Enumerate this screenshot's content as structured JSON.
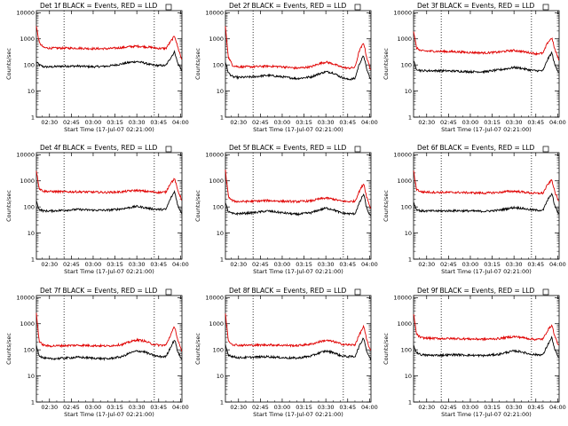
{
  "colors": {
    "events": "#000000",
    "lld": "#e00000",
    "background": "#ffffff",
    "axes": "#000000"
  },
  "chart_data": {
    "type": "line",
    "layout": "3x3 grid of panels",
    "title_prefix_template": "Det {n}f",
    "title_suffix": "BLACK = Events, RED = LLD",
    "xlabel": "Start Time (17-Jul-07 02:21:00)",
    "ylabel": "Counts/sec",
    "x_ticks": [
      "02:30",
      "02:45",
      "03:00",
      "03:15",
      "03:30",
      "03:45",
      "04:00"
    ],
    "x_tick_minutes": [
      30,
      45,
      60,
      75,
      90,
      105,
      120
    ],
    "xlim_minutes": [
      21,
      121
    ],
    "xlim": [
      "02:21",
      "04:01"
    ],
    "y_scale": "log",
    "ylim": [
      1,
      12000
    ],
    "y_ticks": [
      1,
      10,
      100,
      1000,
      10000
    ],
    "y_tick_labels": [
      "1",
      "10",
      "100",
      "1000",
      "10000"
    ],
    "grid": false,
    "legend": "none (described in titles)",
    "panels": [
      {
        "title": "Det 1f BLACK = Events, RED = LLD",
        "vlines_minutes": [
          40,
          102
        ],
        "series": [
          {
            "name": "Events",
            "x": [
              21,
              23,
              26,
              30,
              40,
              50,
              60,
              70,
              80,
              85,
              90,
              95,
              100,
              105,
              110,
              113,
              116,
              118,
              121
            ],
            "y": [
              130,
              100,
              85,
              84,
              90,
              90,
              85,
              90,
              110,
              125,
              135,
              120,
              100,
              95,
              95,
              180,
              320,
              120,
              60
            ]
          },
          {
            "name": "LLD",
            "x": [
              21,
              23,
              26,
              30,
              40,
              50,
              60,
              70,
              80,
              85,
              90,
              95,
              100,
              105,
              110,
              113,
              116,
              118,
              121
            ],
            "y": [
              3000,
              700,
              460,
              440,
              440,
              440,
              420,
              420,
              460,
              500,
              520,
              500,
              470,
              430,
              430,
              750,
              1300,
              520,
              150
            ]
          }
        ]
      },
      {
        "title": "Det 2f BLACK = Events, RED = LLD",
        "vlines_minutes": [
          40,
          102
        ],
        "series": [
          {
            "name": "Events",
            "x": [
              21,
              23,
              26,
              30,
              40,
              50,
              60,
              70,
              80,
              85,
              90,
              95,
              100,
              105,
              110,
              113,
              116,
              118,
              121
            ],
            "y": [
              130,
              50,
              35,
              33,
              35,
              40,
              35,
              30,
              35,
              45,
              55,
              50,
              35,
              28,
              30,
              110,
              230,
              70,
              25
            ]
          },
          {
            "name": "LLD",
            "x": [
              21,
              23,
              26,
              30,
              40,
              50,
              60,
              70,
              80,
              85,
              90,
              95,
              100,
              105,
              110,
              113,
              116,
              118,
              121
            ],
            "y": [
              3000,
              200,
              95,
              85,
              85,
              90,
              85,
              75,
              85,
              110,
              130,
              110,
              85,
              75,
              80,
              350,
              700,
              200,
              60
            ]
          }
        ]
      },
      {
        "title": "Det 3f BLACK = Events, RED = LLD",
        "vlines_minutes": [
          40,
          102
        ],
        "series": [
          {
            "name": "Events",
            "x": [
              21,
              23,
              26,
              30,
              40,
              50,
              60,
              70,
              80,
              85,
              90,
              95,
              100,
              105,
              110,
              113,
              116,
              118,
              121
            ],
            "y": [
              140,
              70,
              60,
              60,
              60,
              58,
              55,
              55,
              65,
              72,
              80,
              75,
              65,
              60,
              60,
              160,
              300,
              100,
              50
            ]
          },
          {
            "name": "LLD",
            "x": [
              21,
              23,
              26,
              30,
              40,
              50,
              60,
              70,
              80,
              85,
              90,
              95,
              100,
              105,
              110,
              113,
              116,
              118,
              121
            ],
            "y": [
              2000,
              450,
              350,
              340,
              330,
              320,
              300,
              290,
              310,
              340,
              360,
              330,
              300,
              270,
              280,
              700,
              1100,
              400,
              150
            ]
          }
        ]
      },
      {
        "title": "Det 4f BLACK = Events, RED = LLD",
        "vlines_minutes": [
          40,
          102
        ],
        "series": [
          {
            "name": "Events",
            "x": [
              21,
              23,
              26,
              30,
              40,
              50,
              60,
              70,
              80,
              85,
              90,
              95,
              100,
              105,
              110,
              113,
              116,
              118,
              121
            ],
            "y": [
              160,
              80,
              70,
              70,
              75,
              80,
              75,
              75,
              85,
              95,
              105,
              95,
              85,
              80,
              80,
              200,
              400,
              120,
              55
            ]
          },
          {
            "name": "LLD",
            "x": [
              21,
              23,
              26,
              30,
              40,
              50,
              60,
              70,
              80,
              85,
              90,
              95,
              100,
              105,
              110,
              113,
              116,
              118,
              121
            ],
            "y": [
              2500,
              500,
              400,
              390,
              380,
              380,
              370,
              360,
              380,
              410,
              430,
              400,
              380,
              360,
              370,
              800,
              1200,
              450,
              180
            ]
          }
        ]
      },
      {
        "title": "Det 5f BLACK = Events, RED = LLD",
        "vlines_minutes": [
          40,
          102
        ],
        "series": [
          {
            "name": "Events",
            "x": [
              21,
              23,
              26,
              30,
              40,
              50,
              60,
              70,
              80,
              85,
              90,
              95,
              100,
              105,
              110,
              113,
              116,
              118,
              121
            ],
            "y": [
              140,
              65,
              55,
              55,
              60,
              70,
              60,
              52,
              60,
              75,
              90,
              80,
              60,
              55,
              55,
              140,
              320,
              90,
              40
            ]
          },
          {
            "name": "LLD",
            "x": [
              21,
              23,
              26,
              30,
              40,
              50,
              60,
              70,
              80,
              85,
              90,
              95,
              100,
              105,
              110,
              113,
              116,
              118,
              121
            ],
            "y": [
              2500,
              250,
              170,
              160,
              165,
              175,
              165,
              160,
              170,
              200,
              220,
              200,
              170,
              160,
              165,
              400,
              800,
              250,
              80
            ]
          }
        ]
      },
      {
        "title": "Det 6f BLACK = Events, RED = LLD",
        "vlines_minutes": [
          40,
          102
        ],
        "series": [
          {
            "name": "Events",
            "x": [
              21,
              23,
              26,
              30,
              40,
              50,
              60,
              70,
              80,
              85,
              90,
              95,
              100,
              105,
              110,
              113,
              116,
              118,
              121
            ],
            "y": [
              150,
              80,
              70,
              70,
              70,
              72,
              70,
              68,
              75,
              85,
              95,
              90,
              80,
              75,
              75,
              180,
              330,
              110,
              50
            ]
          },
          {
            "name": "LLD",
            "x": [
              21,
              23,
              26,
              30,
              40,
              50,
              60,
              70,
              80,
              85,
              90,
              95,
              100,
              105,
              110,
              113,
              116,
              118,
              121
            ],
            "y": [
              2500,
              480,
              380,
              370,
              360,
              360,
              350,
              340,
              360,
              390,
              400,
              380,
              350,
              330,
              340,
              700,
              1100,
              380,
              150
            ]
          }
        ]
      },
      {
        "title": "Det 7f BLACK = Events, RED = LLD",
        "vlines_minutes": [
          40,
          102
        ],
        "series": [
          {
            "name": "Events",
            "x": [
              21,
              23,
              26,
              30,
              40,
              50,
              60,
              70,
              80,
              85,
              90,
              95,
              100,
              105,
              110,
              113,
              116,
              118,
              121
            ],
            "y": [
              150,
              60,
              48,
              45,
              48,
              52,
              48,
              45,
              55,
              75,
              90,
              85,
              65,
              55,
              55,
              120,
              250,
              90,
              40
            ]
          },
          {
            "name": "LLD",
            "x": [
              21,
              23,
              26,
              30,
              40,
              50,
              60,
              70,
              80,
              85,
              90,
              95,
              100,
              105,
              110,
              113,
              116,
              118,
              121
            ],
            "y": [
              2500,
              200,
              150,
              140,
              145,
              150,
              145,
              140,
              160,
              200,
              240,
              220,
              170,
              150,
              150,
              350,
              800,
              250,
              80
            ]
          }
        ]
      },
      {
        "title": "Det 8f BLACK = Events, RED = LLD",
        "vlines_minutes": [
          40,
          102
        ],
        "series": [
          {
            "name": "Events",
            "x": [
              21,
              23,
              26,
              30,
              40,
              50,
              60,
              70,
              80,
              85,
              90,
              95,
              100,
              105,
              110,
              113,
              116,
              118,
              121
            ],
            "y": [
              150,
              65,
              55,
              50,
              52,
              55,
              50,
              48,
              58,
              75,
              90,
              80,
              60,
              55,
              55,
              140,
              300,
              90,
              40
            ]
          },
          {
            "name": "LLD",
            "x": [
              21,
              23,
              26,
              30,
              40,
              50,
              60,
              70,
              80,
              85,
              90,
              95,
              100,
              105,
              110,
              113,
              116,
              118,
              121
            ],
            "y": [
              2500,
              220,
              160,
              150,
              150,
              155,
              150,
              145,
              165,
              200,
              230,
              210,
              170,
              155,
              155,
              380,
              800,
              250,
              80
            ]
          }
        ]
      },
      {
        "title": "Det 9f BLACK = Events, RED = LLD",
        "vlines_minutes": [
          40,
          102
        ],
        "series": [
          {
            "name": "Events",
            "x": [
              21,
              23,
              26,
              30,
              40,
              50,
              60,
              70,
              80,
              85,
              90,
              95,
              100,
              105,
              110,
              113,
              116,
              118,
              121
            ],
            "y": [
              150,
              80,
              65,
              62,
              62,
              65,
              62,
              60,
              68,
              80,
              90,
              85,
              70,
              65,
              65,
              150,
              300,
              100,
              45
            ]
          },
          {
            "name": "LLD",
            "x": [
              21,
              23,
              26,
              30,
              40,
              50,
              60,
              70,
              80,
              85,
              90,
              95,
              100,
              105,
              110,
              113,
              116,
              118,
              121
            ],
            "y": [
              2500,
              400,
              290,
              280,
              270,
              270,
              260,
              255,
              270,
              300,
              320,
              300,
              270,
              250,
              260,
              550,
              900,
              330,
              130
            ]
          }
        ]
      }
    ]
  }
}
